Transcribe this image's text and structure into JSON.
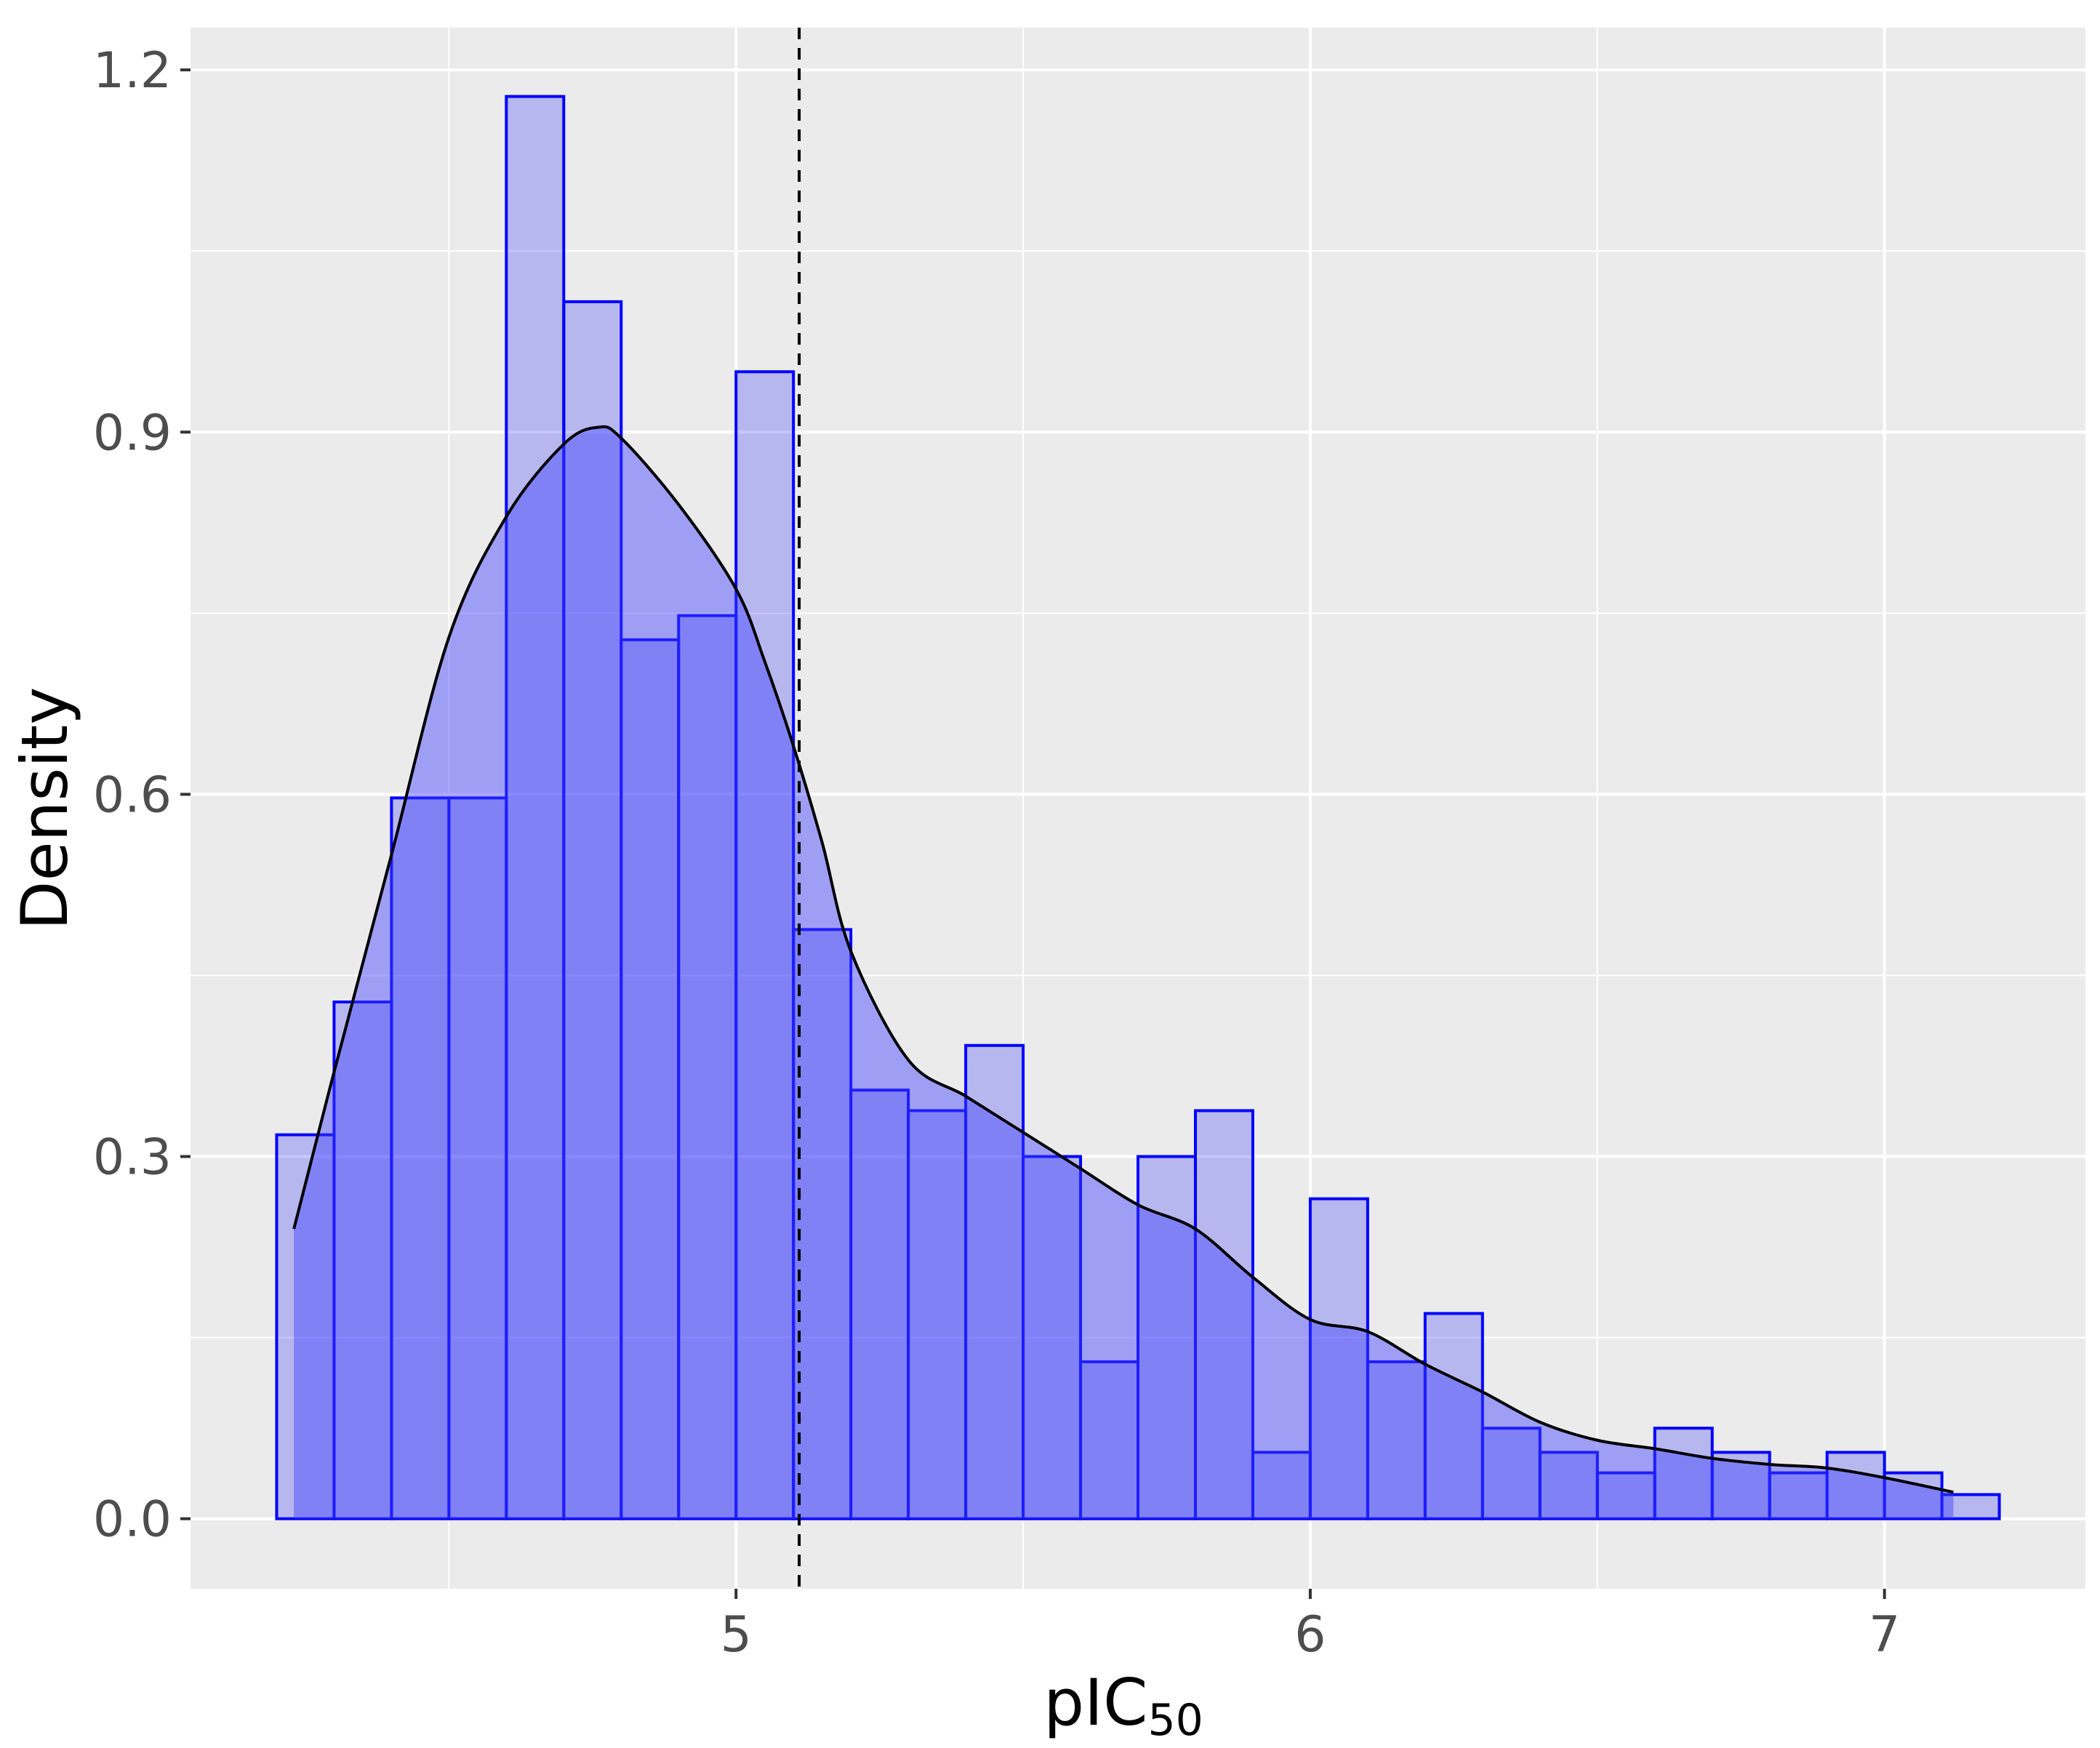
{
  "chart_data": {
    "type": "bar",
    "subtype": "histogram-with-density",
    "title": "",
    "xlabel": "pIC",
    "xlabel_subscript": "50",
    "ylabel": "Density",
    "xlim": [
      4.05,
      7.35
    ],
    "ylim": [
      -0.058,
      1.235
    ],
    "x_ticks": [
      5,
      6,
      7
    ],
    "x_tick_labels": [
      "5",
      "6",
      "7"
    ],
    "y_ticks": [
      0.0,
      0.3,
      0.6,
      0.9,
      1.2
    ],
    "y_tick_labels": [
      "0.0",
      "0.3",
      "0.6",
      "0.9",
      "1.2"
    ],
    "grid": true,
    "background_color": "#ebebeb",
    "grid_color": "#ffffff",
    "bar_fill_color": "#0000ff",
    "bar_fill_opacity": 0.22,
    "bar_stroke_color": "#0000ff",
    "density_fill_color": "#4040ff",
    "density_fill_opacity": 0.45,
    "density_line_color": "#000000",
    "vline_color": "#000000",
    "bin_width": 0.1,
    "bin_starts": [
      4.2,
      4.3,
      4.4,
      4.5,
      4.6,
      4.7,
      4.8,
      4.9,
      5.0,
      5.1,
      5.2,
      5.3,
      5.4,
      5.5,
      5.6,
      5.7,
      5.8,
      5.9,
      6.0,
      6.1,
      6.2,
      6.3,
      6.4,
      6.5,
      6.6,
      6.7,
      6.8,
      6.9,
      7.0,
      7.1
    ],
    "values": [
      0.318,
      0.428,
      0.597,
      0.597,
      1.178,
      1.008,
      0.728,
      0.748,
      0.95,
      0.488,
      0.355,
      0.338,
      0.392,
      0.3,
      0.13,
      0.3,
      0.338,
      0.055,
      0.265,
      0.13,
      0.17,
      0.075,
      0.055,
      0.038,
      0.075,
      0.055,
      0.038,
      0.055,
      0.038,
      0.02
    ],
    "density_curve": {
      "x": [
        4.23,
        4.3,
        4.4,
        4.5,
        4.6,
        4.7,
        4.76,
        4.8,
        4.9,
        5.0,
        5.05,
        5.1,
        5.15,
        5.2,
        5.3,
        5.4,
        5.5,
        5.6,
        5.7,
        5.8,
        5.9,
        6.0,
        6.1,
        6.2,
        6.3,
        6.4,
        6.5,
        6.6,
        6.7,
        6.8,
        6.9,
        7.0,
        7.12
      ],
      "y": [
        0.24,
        0.37,
        0.55,
        0.73,
        0.83,
        0.89,
        0.904,
        0.895,
        0.84,
        0.77,
        0.71,
        0.64,
        0.56,
        0.47,
        0.38,
        0.35,
        0.32,
        0.29,
        0.26,
        0.24,
        0.2,
        0.165,
        0.155,
        0.128,
        0.105,
        0.08,
        0.065,
        0.058,
        0.05,
        0.045,
        0.042,
        0.034,
        0.022
      ]
    },
    "vline_x": 5.11
  }
}
